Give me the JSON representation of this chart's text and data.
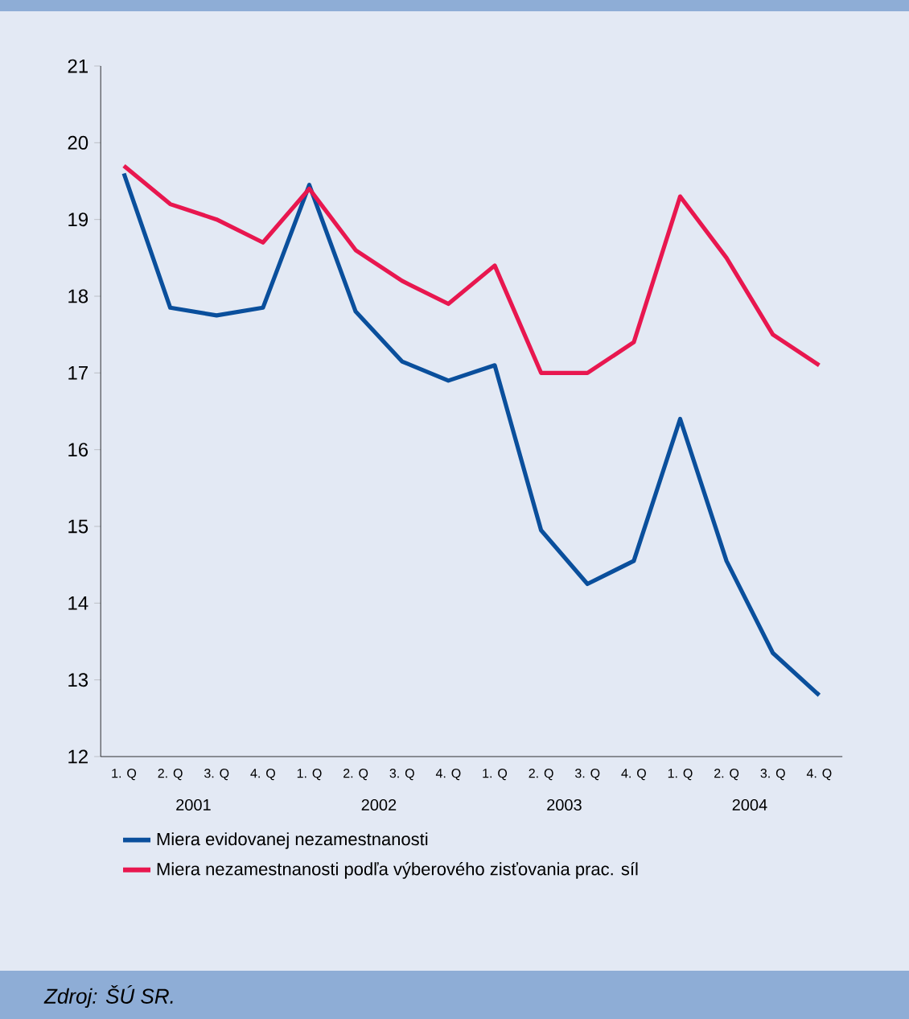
{
  "chart_data": {
    "type": "line",
    "categories": [
      "1. Q",
      "2. Q",
      "3. Q",
      "4. Q",
      "1. Q",
      "2. Q",
      "3. Q",
      "4. Q",
      "1. Q",
      "2. Q",
      "3. Q",
      "4. Q",
      "1. Q",
      "2. Q",
      "3. Q",
      "4. Q"
    ],
    "series": [
      {
        "name": "Miera evidovanej nezamestnanosti",
        "color": "#0a4f9c",
        "values": [
          19.6,
          17.85,
          17.75,
          17.85,
          19.45,
          17.8,
          17.15,
          16.9,
          17.1,
          14.95,
          14.25,
          14.55,
          16.4,
          14.55,
          13.35,
          12.8
        ]
      },
      {
        "name": "Miera nezamestnanosti podľa výberového zisťovania prac. síl",
        "color": "#e8174f",
        "values": [
          19.7,
          19.2,
          19.0,
          18.7,
          19.4,
          18.6,
          18.2,
          17.9,
          18.4,
          17.0,
          17.0,
          17.4,
          19.3,
          18.5,
          17.5,
          17.1
        ]
      }
    ],
    "ylim": [
      12,
      21
    ],
    "yticks": [
      12,
      13,
      14,
      15,
      16,
      17,
      18,
      19,
      20,
      21
    ],
    "grid": false,
    "legend": "bottom",
    "marker": "none",
    "line_style": "solid",
    "annotations": [
      "2001",
      "2002",
      "2003",
      "2004",
      "Zdroj: ŠÚ SR."
    ]
  }
}
